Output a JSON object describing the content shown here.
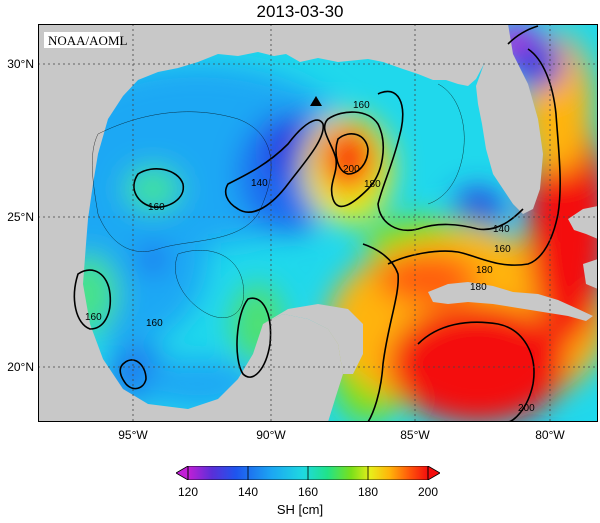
{
  "title": "2013-03-30",
  "credit": "NOAA/AOML",
  "lat_labels": [
    "30°N",
    "25°N",
    "20°N"
  ],
  "lon_labels": [
    "95°W",
    "90°W",
    "85°W",
    "80°W"
  ],
  "contour_labels": [
    "140",
    "160",
    "160",
    "160",
    "180",
    "200",
    "180",
    "160",
    "180",
    "200",
    "140",
    "160"
  ],
  "colorbar": {
    "title": "SH [cm]",
    "ticks": [
      "120",
      "140",
      "160",
      "180",
      "200"
    ],
    "colors": [
      "#c21fd6",
      "#5a2fd8",
      "#1e55ee",
      "#1ca7f2",
      "#1ed9e0",
      "#20e38a",
      "#7ae01a",
      "#e8ee1a",
      "#ffb40a",
      "#ff5a0a",
      "#f40d0d"
    ]
  },
  "colors": {
    "land": "#c8c8c8",
    "ocean_base": "#20d8ec",
    "warm": "#f21a0a",
    "cool": "#1a4de8"
  }
}
